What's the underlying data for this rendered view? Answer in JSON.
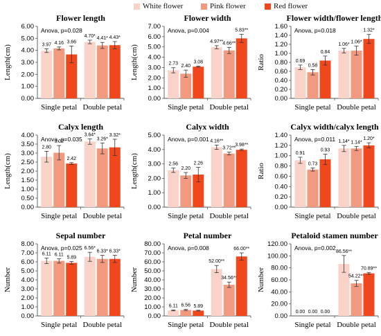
{
  "legend": {
    "items": [
      {
        "label": "White flower",
        "color": "#f9d3c7"
      },
      {
        "label": "Pink flower",
        "color": "#f29a80"
      },
      {
        "label": "Red flower",
        "color": "#f0471c"
      }
    ]
  },
  "chart_data": [
    {
      "type": "bar",
      "title": "Flower length",
      "annotation": "Anova, p=0.028",
      "ylabel": "Length(cm)",
      "ylim": [
        0,
        6
      ],
      "yticks": [
        "0.00",
        "1.00",
        "2.00",
        "3.00",
        "4.00",
        "5.00",
        "6.00"
      ],
      "categories": [
        "Single petal",
        "Double petal"
      ],
      "series": [
        {
          "name": "White flower",
          "values": [
            3.97,
            4.7
          ],
          "errors": [
            0.15,
            0.15
          ],
          "labels": [
            "3.97",
            "4.70*"
          ]
        },
        {
          "name": "Pink flower",
          "values": [
            4.16,
            4.41
          ],
          "errors": [
            0.12,
            0.25
          ],
          "labels": [
            "4.16",
            "4.41*"
          ]
        },
        {
          "name": "Red flower",
          "values": [
            3.66,
            4.43
          ],
          "errors": [
            0.7,
            0.3
          ],
          "labels": [
            "3.66",
            "4.43*"
          ]
        }
      ]
    },
    {
      "type": "bar",
      "title": "Flower width",
      "annotation": "Anova, p=0.004",
      "ylabel": "Length(cm)",
      "ylim": [
        0,
        7
      ],
      "yticks": [
        "0.00",
        "1.00",
        "2.00",
        "3.00",
        "4.00",
        "5.00",
        "6.00",
        "7.00"
      ],
      "categories": [
        "Single petal",
        "Double petal"
      ],
      "series": [
        {
          "name": "White flower",
          "values": [
            2.73,
            4.97
          ],
          "errors": [
            0.25,
            0.15
          ],
          "labels": [
            "2.73",
            "4.97**"
          ]
        },
        {
          "name": "Pink flower",
          "values": [
            2.4,
            4.66
          ],
          "errors": [
            0.35,
            0.3
          ],
          "labels": [
            "2.40",
            "4.66**"
          ]
        },
        {
          "name": "Red flower",
          "values": [
            3.08,
            5.83
          ],
          "errors": [
            0.05,
            0.4
          ],
          "labels": [
            "3.08",
            "5.83**"
          ]
        }
      ]
    },
    {
      "type": "bar",
      "title": "Flower width/flower length",
      "annotation": "Anova, p=0.018",
      "ylabel": "Ratio",
      "ylim": [
        0,
        1.6
      ],
      "yticks": [
        "0.00",
        "0.20",
        "0.40",
        "0.60",
        "0.80",
        "1.00",
        "1.20",
        "1.40",
        "1.60"
      ],
      "categories": [
        "Single petal",
        "Double petal"
      ],
      "series": [
        {
          "name": "White flower",
          "values": [
            0.69,
            1.06
          ],
          "errors": [
            0.05,
            0.05
          ],
          "labels": [
            "0.69",
            "1.06*"
          ]
        },
        {
          "name": "Pink flower",
          "values": [
            0.58,
            1.06
          ],
          "errors": [
            0.06,
            0.1
          ],
          "labels": [
            "0.58",
            "1.06*"
          ]
        },
        {
          "name": "Red flower",
          "values": [
            0.84,
            1.32
          ],
          "errors": [
            0.1,
            0.1
          ],
          "labels": [
            "0.84",
            "1.32*"
          ]
        }
      ]
    },
    {
      "type": "bar",
      "title": "Calyx length",
      "annotation": "Anova, p=0.035",
      "ylabel": "Length(cm)",
      "ylim": [
        0,
        4
      ],
      "yticks": [
        "0.00",
        "0.50",
        "1.00",
        "1.50",
        "2.00",
        "2.50",
        "3.00",
        "3.50",
        "4.00"
      ],
      "categories": [
        "Single petal",
        "Double petal"
      ],
      "series": [
        {
          "name": "White flower",
          "values": [
            2.8,
            3.64
          ],
          "errors": [
            0.3,
            0.15
          ],
          "labels": [
            "2.80",
            "3.64*"
          ]
        },
        {
          "name": "Pink flower",
          "values": [
            3.02,
            3.26
          ],
          "errors": [
            0.4,
            0.3
          ],
          "labels": [
            "3.02",
            "3.26*"
          ]
        },
        {
          "name": "Red flower",
          "values": [
            2.42,
            3.32
          ],
          "errors": [
            0.05,
            0.45
          ],
          "labels": [
            "2.42",
            "3.32*"
          ]
        }
      ]
    },
    {
      "type": "bar",
      "title": "Calyx width",
      "annotation": "Anova, p=0.001",
      "ylabel": "Length(cm)",
      "ylim": [
        0,
        5
      ],
      "yticks": [
        "0.00",
        "1.00",
        "2.00",
        "3.00",
        "4.00",
        "5.00"
      ],
      "categories": [
        "Single petal",
        "Double petal"
      ],
      "series": [
        {
          "name": "White flower",
          "values": [
            2.56,
            4.16
          ],
          "errors": [
            0.15,
            0.15
          ],
          "labels": [
            "2.56",
            "4.16**"
          ]
        },
        {
          "name": "Pink flower",
          "values": [
            2.2,
            3.72
          ],
          "errors": [
            0.2,
            0.1
          ],
          "labels": [
            "2.20",
            "3.72**"
          ]
        },
        {
          "name": "Red flower",
          "values": [
            2.26,
            3.98
          ],
          "errors": [
            0.5,
            0.05
          ],
          "labels": [
            "2.26",
            "3.98**"
          ]
        }
      ]
    },
    {
      "type": "bar",
      "title": "Calyx width/calyx length",
      "annotation": "Anova, p=0.011",
      "ylabel": "Ratio",
      "ylim": [
        0,
        1.4
      ],
      "yticks": [
        "0.00",
        "0.20",
        "0.40",
        "0.60",
        "0.80",
        "1.00",
        "1.20",
        "1.40"
      ],
      "categories": [
        "Single petal",
        "Double petal"
      ],
      "series": [
        {
          "name": "White flower",
          "values": [
            0.91,
            1.14
          ],
          "errors": [
            0.06,
            0.06
          ],
          "labels": [
            "0.91",
            "1.14*"
          ]
        },
        {
          "name": "Pink flower",
          "values": [
            0.73,
            1.14
          ],
          "errors": [
            0.03,
            0.04
          ],
          "labels": [
            "0.73",
            "1.14*"
          ]
        },
        {
          "name": "Red flower",
          "values": [
            0.93,
            1.2
          ],
          "errors": [
            0.1,
            0.05
          ],
          "labels": [
            "0.93",
            "1.20*"
          ]
        }
      ]
    },
    {
      "type": "bar",
      "title": "Sepal number",
      "annotation": "Anova, p=0.025",
      "ylabel": "Number",
      "ylim": [
        0,
        8
      ],
      "yticks": [
        "0.00",
        "1.00",
        "2.00",
        "3.00",
        "4.00",
        "5.00",
        "6.00",
        "7.00",
        "8.00"
      ],
      "categories": [
        "Single petal",
        "Double petal"
      ],
      "series": [
        {
          "name": "White flower",
          "values": [
            6.11,
            6.56
          ],
          "errors": [
            0.3,
            0.5
          ],
          "labels": [
            "6.11",
            "6.56*"
          ]
        },
        {
          "name": "Pink flower",
          "values": [
            6.11,
            6.33
          ],
          "errors": [
            0.25,
            0.4
          ],
          "labels": [
            "6.11",
            "6.33*"
          ]
        },
        {
          "name": "Red flower",
          "values": [
            5.89,
            6.33
          ],
          "errors": [
            0.15,
            0.4
          ],
          "labels": [
            "5.89",
            "6.33*"
          ]
        }
      ]
    },
    {
      "type": "bar",
      "title": "Petal number",
      "annotation": "Anova, p=0.008",
      "ylabel": "Number",
      "ylim": [
        0,
        80
      ],
      "yticks": [
        "0.00",
        "10.00",
        "20.00",
        "30.00",
        "40.00",
        "50.00",
        "60.00",
        "70.00",
        "80.00"
      ],
      "categories": [
        "Single petal",
        "Double petal"
      ],
      "series": [
        {
          "name": "White flower",
          "values": [
            6.11,
            52.0
          ],
          "errors": [
            0.5,
            4
          ],
          "labels": [
            "6.11",
            "52.00**"
          ]
        },
        {
          "name": "Pink flower",
          "values": [
            6.56,
            34.56
          ],
          "errors": [
            0.6,
            3
          ],
          "labels": [
            "6.56",
            "34.56**"
          ]
        },
        {
          "name": "Red flower",
          "values": [
            5.89,
            66.0
          ],
          "errors": [
            0.4,
            4
          ],
          "labels": [
            "5.89",
            "66.00**"
          ]
        }
      ]
    },
    {
      "type": "bar",
      "title": "Petaloid stamen number",
      "annotation": "Anova, p=0.002",
      "ylabel": "Number",
      "ylim": [
        0,
        120
      ],
      "yticks": [
        "0.00",
        "20.00",
        "40.00",
        "60.00",
        "80.00",
        "100.00",
        "120.00"
      ],
      "categories": [
        "Single petal",
        "Double petal"
      ],
      "series": [
        {
          "name": "White flower",
          "values": [
            0.0,
            86.56
          ],
          "errors": [
            0,
            14
          ],
          "labels": [
            "0.00",
            "86.56**"
          ]
        },
        {
          "name": "Pink flower",
          "values": [
            0.0,
            54.22
          ],
          "errors": [
            0,
            5
          ],
          "labels": [
            "0.00",
            "54.22**"
          ]
        },
        {
          "name": "Red flower",
          "values": [
            0.0,
            70.89
          ],
          "errors": [
            0,
            1.5
          ],
          "labels": [
            "0.00",
            "70.89**"
          ]
        }
      ]
    }
  ]
}
